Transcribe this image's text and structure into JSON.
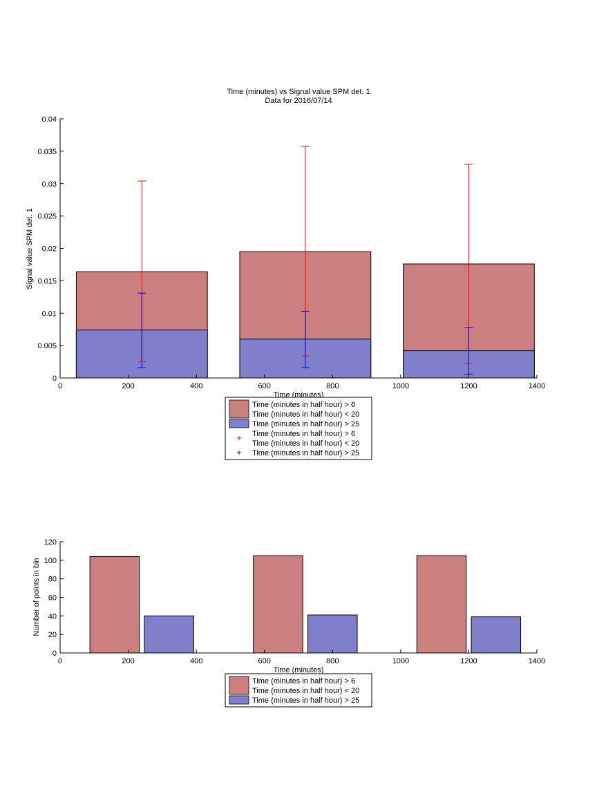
{
  "colors": {
    "red_bar": "#cc7f7f",
    "blue_bar": "#7f7fcc",
    "red_err": "#ff0000",
    "blue_err": "#0000cc"
  },
  "chart_data": [
    {
      "type": "bar",
      "title": "Time (minutes) vs Signal value SPM det. 1",
      "subtitle": "Data for 2016/07/14",
      "xlabel": "Time (minutes)",
      "ylabel": "Signal value SPM det. 1",
      "xlim": [
        0,
        1400
      ],
      "ylim": [
        0,
        0.04
      ],
      "xticks": [
        "0",
        "200",
        "400",
        "600",
        "800",
        "1000",
        "1200",
        "1400"
      ],
      "yticks": [
        "0",
        "0.005",
        "0.01",
        "0.015",
        "0.02",
        "0.025",
        "0.03",
        "0.035",
        "0.04"
      ],
      "bar_width": 385,
      "bars_overlaid": true,
      "x": [
        240,
        720,
        1200
      ],
      "series": [
        {
          "name": "Time (minutes in half hour) > 6\nTime (minutes in half hour) < 20",
          "color_key": "red_bar",
          "values": [
            0.0164,
            0.0195,
            0.0176
          ]
        },
        {
          "name": "Time (minutes in half hour) > 25",
          "color_key": "blue_bar",
          "values": [
            0.0074,
            0.006,
            0.0042
          ]
        }
      ],
      "errorbars": [
        {
          "name": "Time (minutes in half hour) > 6\nTime (minutes in half hour) < 20",
          "color_key": "red_err",
          "lower": [
            0.0025,
            0.0034,
            0.0023
          ],
          "upper": [
            0.0304,
            0.0358,
            0.033
          ]
        },
        {
          "name": "Time (minutes in half hour) > 25",
          "color_key": "blue_err",
          "lower": [
            0.0016,
            0.0016,
            0.0006
          ],
          "upper": [
            0.0131,
            0.0103,
            0.0078
          ]
        }
      ],
      "legend_placement": "below",
      "grid": false
    },
    {
      "type": "bar",
      "xlabel": "Time (minutes)",
      "ylabel": "Number of points in bin",
      "xlim": [
        0,
        1400
      ],
      "ylim": [
        0,
        120
      ],
      "xticks": [
        "0",
        "200",
        "400",
        "600",
        "800",
        "1000",
        "1200",
        "1400"
      ],
      "yticks": [
        "0",
        "20",
        "40",
        "60",
        "80",
        "100",
        "120"
      ],
      "bar_width": 145,
      "bars_grouped": true,
      "x": [
        160,
        640,
        1120
      ],
      "offset": 80,
      "series": [
        {
          "name": "Time (minutes in half hour) > 6\nTime (minutes in half hour) < 20",
          "color_key": "red_bar",
          "values": [
            104,
            105,
            105
          ]
        },
        {
          "name": "Time (minutes in half hour) > 25",
          "color_key": "blue_bar",
          "values": [
            40,
            41,
            39
          ]
        }
      ],
      "legend_placement": "below",
      "grid": false
    }
  ]
}
